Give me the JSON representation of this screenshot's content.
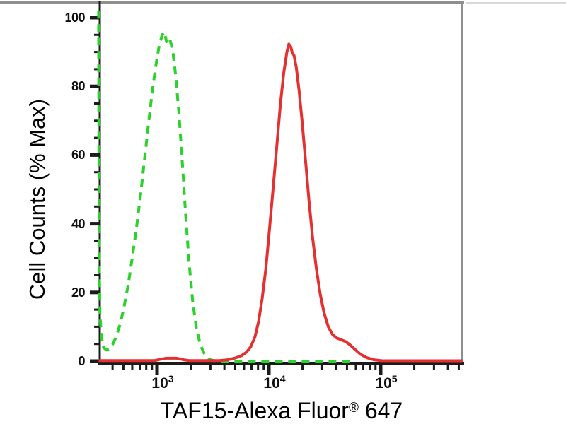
{
  "figure": {
    "y_axis_title": "Cell Counts (% Max)",
    "x_axis_title": {
      "main": "TAF15-Alexa Fluor",
      "sup": "®",
      "tail": " 647"
    }
  },
  "chart_data": {
    "type": "line",
    "variant": "flow-cytometry-overlay-histogram",
    "title": "",
    "xlabel": "TAF15-Alexa Fluor® 647",
    "ylabel": "Cell Counts (% Max)",
    "x_scale": "log",
    "x_range": [
      300,
      540000
    ],
    "y_range": [
      0,
      105
    ],
    "grid": false,
    "legend": "none",
    "y_major_ticks": [
      0,
      20,
      40,
      60,
      80,
      100
    ],
    "y_minor_step": 5,
    "x_major_ticks": [
      {
        "value": 1000,
        "base": "10",
        "exponent": "3"
      },
      {
        "value": 10000,
        "base": "10",
        "exponent": "4"
      },
      {
        "value": 100000,
        "base": "10",
        "exponent": "5"
      }
    ],
    "colors": {
      "axis": "#1b1b1b",
      "frame_gray": "#8f8f8f",
      "frame_light": "#d9d9d9"
    },
    "series": [
      {
        "id": "green-dashed-control",
        "line_style": "dashed",
        "color": "#2dd12d",
        "stroke_width": 4,
        "peak": {
          "x": 1150,
          "y": 96
        },
        "points": [
          [
            300,
            102
          ],
          [
            302,
            60
          ],
          [
            304,
            30
          ],
          [
            308,
            14
          ],
          [
            318,
            7
          ],
          [
            332,
            4
          ],
          [
            352,
            3.2
          ],
          [
            375,
            3.6
          ],
          [
            400,
            4.8
          ],
          [
            430,
            7
          ],
          [
            465,
            10.5
          ],
          [
            505,
            15.5
          ],
          [
            550,
            22
          ],
          [
            600,
            30
          ],
          [
            655,
            39
          ],
          [
            715,
            49
          ],
          [
            780,
            60
          ],
          [
            845,
            70
          ],
          [
            910,
            79
          ],
          [
            975,
            86
          ],
          [
            1040,
            91.5
          ],
          [
            1110,
            95
          ],
          [
            1160,
            95.8
          ],
          [
            1215,
            93
          ],
          [
            1290,
            94.2
          ],
          [
            1380,
            90.5
          ],
          [
            1470,
            83
          ],
          [
            1570,
            72
          ],
          [
            1680,
            58
          ],
          [
            1800,
            43
          ],
          [
            1930,
            29
          ],
          [
            2080,
            17.5
          ],
          [
            2250,
            9.5
          ],
          [
            2450,
            4.5
          ],
          [
            2700,
            1.6
          ],
          [
            3000,
            0.4
          ],
          [
            3400,
            0
          ],
          [
            57000,
            0
          ]
        ]
      },
      {
        "id": "red-solid-sample",
        "line_style": "solid",
        "color": "#e43030",
        "stroke_width": 4,
        "peak": {
          "x": 15100,
          "y": 92.3
        },
        "points": [
          [
            300,
            0.15
          ],
          [
            950,
            0.15
          ],
          [
            1060,
            0.5
          ],
          [
            1200,
            0.85
          ],
          [
            1500,
            0.85
          ],
          [
            1730,
            0.4
          ],
          [
            1950,
            0.15
          ],
          [
            3600,
            0.15
          ],
          [
            4300,
            0.4
          ],
          [
            5000,
            0.9
          ],
          [
            5700,
            1.6
          ],
          [
            6300,
            2.6
          ],
          [
            6900,
            4.2
          ],
          [
            7500,
            7
          ],
          [
            8100,
            11.5
          ],
          [
            8700,
            18
          ],
          [
            9400,
            27
          ],
          [
            10100,
            38
          ],
          [
            10900,
            50
          ],
          [
            11800,
            63
          ],
          [
            12700,
            75
          ],
          [
            13600,
            84
          ],
          [
            14500,
            90
          ],
          [
            15100,
            92.3
          ],
          [
            15700,
            91.5
          ],
          [
            16200,
            89.8
          ],
          [
            16800,
            89
          ],
          [
            17600,
            85.5
          ],
          [
            18600,
            79
          ],
          [
            19800,
            70
          ],
          [
            21200,
            59
          ],
          [
            22800,
            47
          ],
          [
            24600,
            36
          ],
          [
            26600,
            27
          ],
          [
            28800,
            19.5
          ],
          [
            31200,
            14
          ],
          [
            34000,
            10
          ],
          [
            37000,
            7.8
          ],
          [
            40500,
            6.7
          ],
          [
            44500,
            6.2
          ],
          [
            48500,
            5.7
          ],
          [
            53000,
            4.8
          ],
          [
            59000,
            3.4
          ],
          [
            66000,
            2
          ],
          [
            75000,
            1
          ],
          [
            87000,
            0.4
          ],
          [
            102000,
            0.12
          ],
          [
            540000,
            0.1
          ]
        ]
      }
    ]
  }
}
